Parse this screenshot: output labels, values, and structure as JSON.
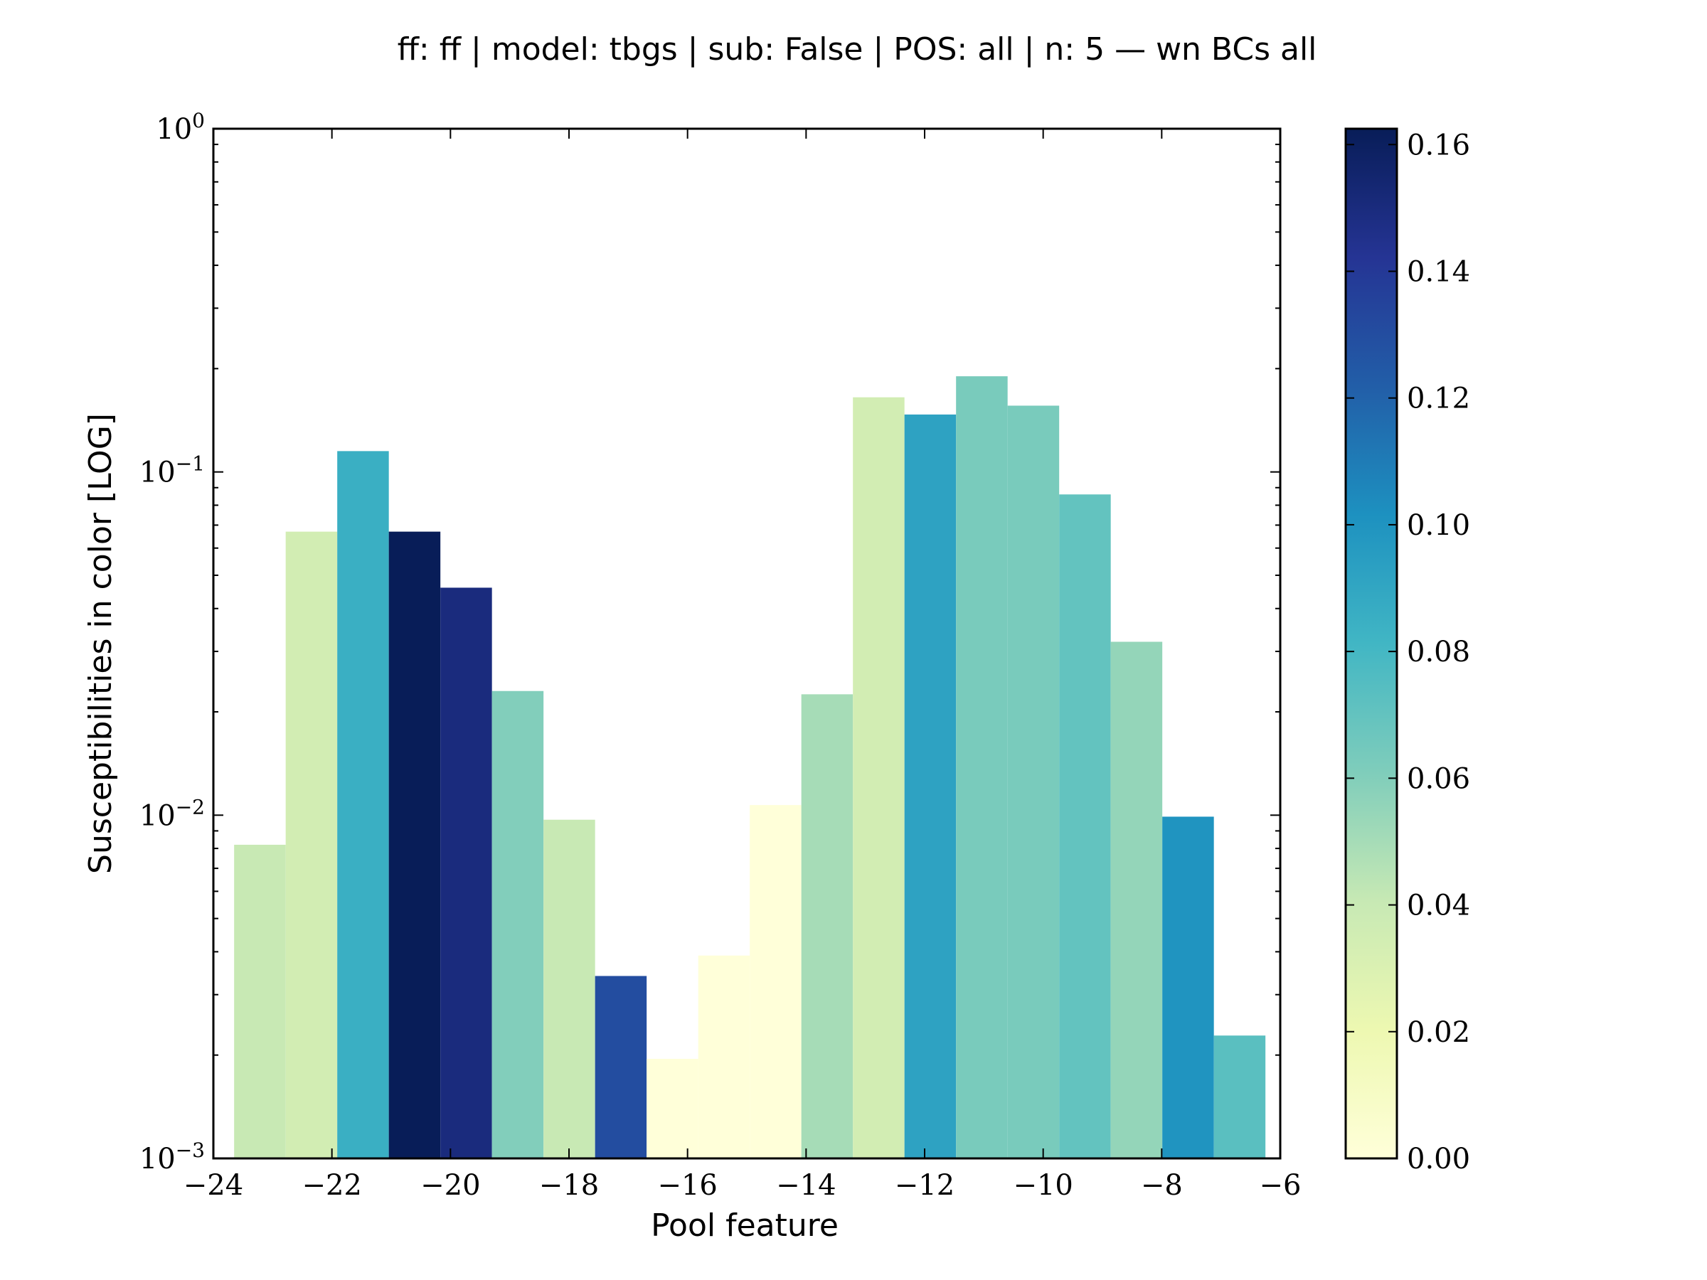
{
  "chart_data": {
    "type": "bar",
    "title": "ff: ff | model: tbgs | sub: False | POS: all | n: 5 — wn BCs all",
    "xlabel": "Pool feature",
    "ylabel": "Susceptibilities in color [LOG]",
    "xlim": [
      -24,
      -6
    ],
    "ylim": [
      0.001,
      1
    ],
    "yscale": "log",
    "grid": false,
    "x_ticks": [
      -24,
      -22,
      -20,
      -18,
      -16,
      -14,
      -12,
      -10,
      -8,
      -6
    ],
    "x_tick_labels": [
      "−24",
      "−22",
      "−20",
      "−18",
      "−16",
      "−14",
      "−12",
      "−10",
      "−8",
      "−6"
    ],
    "y_ticks": [
      {
        "value": 1,
        "base": "10",
        "exp": "0"
      },
      {
        "value": 0.1,
        "base": "10",
        "exp": "−1"
      },
      {
        "value": 0.01,
        "base": "10",
        "exp": "−2"
      },
      {
        "value": 0.001,
        "base": "10",
        "exp": "−3"
      }
    ],
    "bar_width": 0.87,
    "bars": [
      {
        "x": -23.65,
        "value": 0.0082,
        "color_value": 0.04
      },
      {
        "x": -22.78,
        "value": 0.067,
        "color_value": 0.035
      },
      {
        "x": -21.91,
        "value": 0.115,
        "color_value": 0.085
      },
      {
        "x": -21.04,
        "value": 0.067,
        "color_value": 0.163
      },
      {
        "x": -20.17,
        "value": 0.046,
        "color_value": 0.15
      },
      {
        "x": -19.3,
        "value": 0.023,
        "color_value": 0.06
      },
      {
        "x": -18.43,
        "value": 0.0097,
        "color_value": 0.04
      },
      {
        "x": -17.56,
        "value": 0.0034,
        "color_value": 0.13
      },
      {
        "x": -16.69,
        "value": 0.00195,
        "color_value": 0.0
      },
      {
        "x": -15.82,
        "value": 0.0039,
        "color_value": 0.0
      },
      {
        "x": -14.95,
        "value": 0.0107,
        "color_value": 0.0
      },
      {
        "x": -14.08,
        "value": 0.0225,
        "color_value": 0.05
      },
      {
        "x": -13.21,
        "value": 0.165,
        "color_value": 0.035
      },
      {
        "x": -12.34,
        "value": 0.147,
        "color_value": 0.092
      },
      {
        "x": -11.47,
        "value": 0.19,
        "color_value": 0.063
      },
      {
        "x": -10.6,
        "value": 0.156,
        "color_value": 0.063
      },
      {
        "x": -9.73,
        "value": 0.086,
        "color_value": 0.07
      },
      {
        "x": -8.86,
        "value": 0.032,
        "color_value": 0.055
      },
      {
        "x": -7.99,
        "value": 0.0099,
        "color_value": 0.1
      },
      {
        "x": -7.12,
        "value": 0.00228,
        "color_value": 0.073
      }
    ],
    "colorbar": {
      "colormap": "YlGnBu",
      "range": [
        0,
        0.1625
      ],
      "ticks": [
        0.0,
        0.02,
        0.04,
        0.06,
        0.08,
        0.1,
        0.12,
        0.14,
        0.16
      ],
      "tick_labels": [
        "0.00",
        "0.02",
        "0.04",
        "0.06",
        "0.08",
        "0.10",
        "0.12",
        "0.14",
        "0.16"
      ],
      "stops": [
        "#ffffd9",
        "#edf8b1",
        "#c7e9b4",
        "#7fcdbb",
        "#41b6c4",
        "#1d91c0",
        "#225ea8",
        "#253494",
        "#081d58"
      ]
    }
  }
}
